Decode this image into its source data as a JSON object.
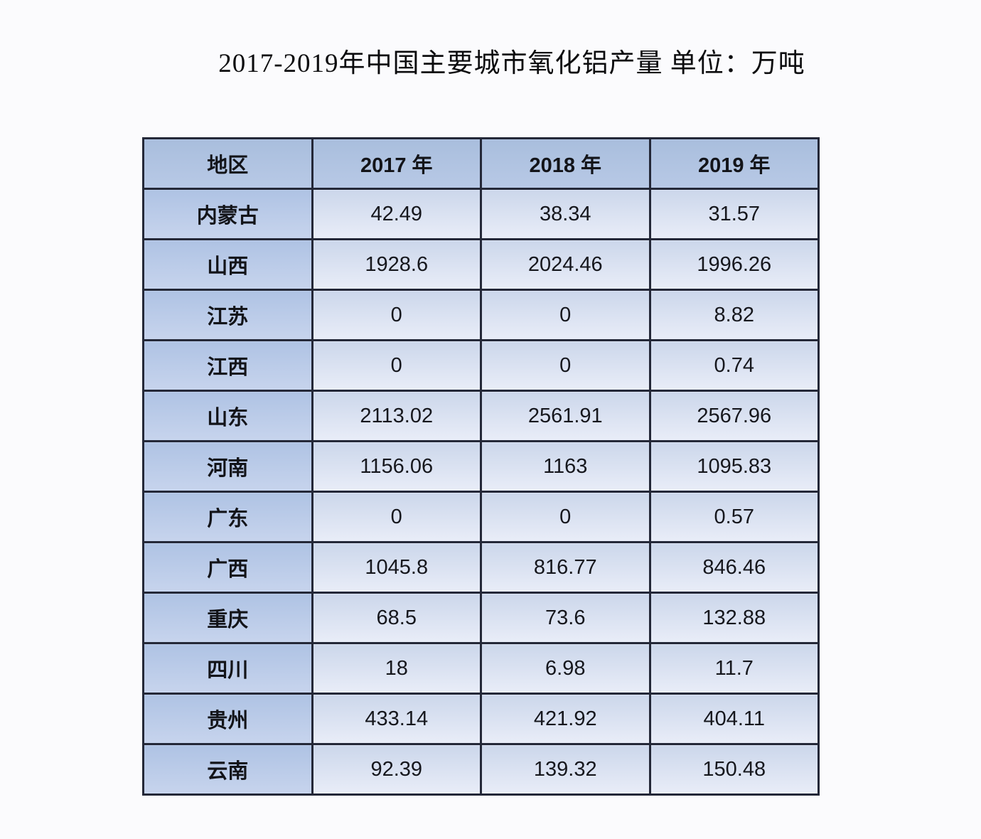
{
  "title": "2017-2019年中国主要城市氧化铝产量 单位：万吨",
  "chart_data": {
    "type": "table",
    "title": "2017-2019年中国主要城市氧化铝产量 单位：万吨",
    "unit": "万吨",
    "columns": [
      "地区",
      "2017 年",
      "2018 年",
      "2019 年"
    ],
    "categories": [
      "内蒙古",
      "山西",
      "江苏",
      "江西",
      "山东",
      "河南",
      "广东",
      "广西",
      "重庆",
      "四川",
      "贵州",
      "云南"
    ],
    "series": [
      {
        "name": "2017 年",
        "values": [
          42.49,
          1928.6,
          0,
          0,
          2113.02,
          1156.06,
          0,
          1045.8,
          68.5,
          18,
          433.14,
          92.39
        ]
      },
      {
        "name": "2018 年",
        "values": [
          38.34,
          2024.46,
          0,
          0,
          2561.91,
          1163,
          0,
          816.77,
          73.6,
          6.98,
          421.92,
          139.32
        ]
      },
      {
        "name": "2019 年",
        "values": [
          31.57,
          1996.26,
          8.82,
          0.74,
          2567.96,
          1095.83,
          0.57,
          846.46,
          132.88,
          11.7,
          404.11,
          150.48
        ]
      }
    ],
    "layout": {
      "grid": true,
      "header_position": "top",
      "first_column_role": "row-header"
    },
    "colors": {
      "header_bg": "#aec2e0",
      "region_column_bg": "#b7c9e6",
      "cell_bg_top": "#ccd7eb",
      "cell_bg_bottom": "#e9edf8",
      "border": "#242838",
      "text": "#131419",
      "page_bg": "#fbfbfd"
    }
  }
}
